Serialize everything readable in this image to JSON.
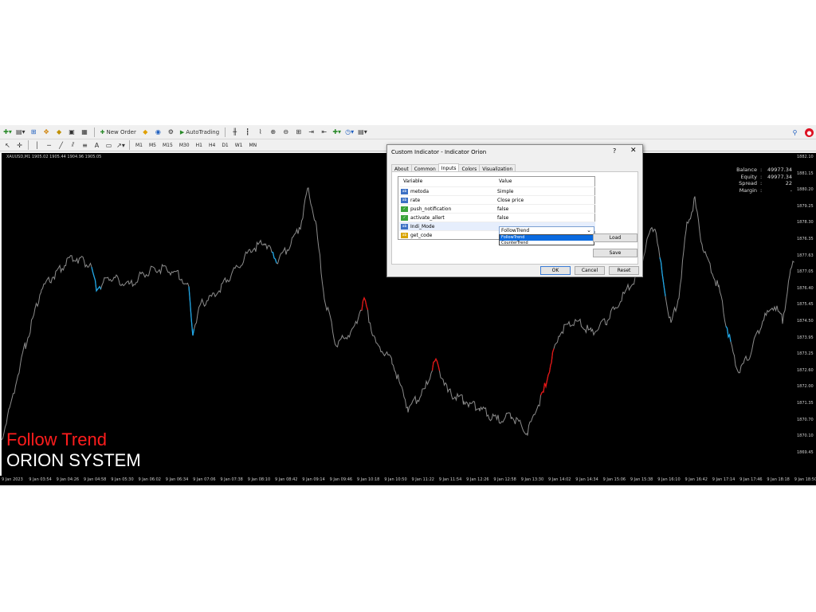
{
  "toolbar": {
    "new_order": "New Order",
    "autotrading": "AutoTrading",
    "timeframes": [
      "M1",
      "M5",
      "M15",
      "M30",
      "H1",
      "H4",
      "D1",
      "W1",
      "MN"
    ]
  },
  "chart": {
    "symbol_line": "XAUUSD,M1  1905.02 1905.44 1904.96 1905.05",
    "account": [
      {
        "label": "Balance",
        "value": "49977.34"
      },
      {
        "label": "Equity",
        "value": "49977.34"
      },
      {
        "label": "Spread",
        "value": "22"
      },
      {
        "label": "Margin",
        "value": "-"
      }
    ],
    "overlay_line1": "Follow Trend",
    "overlay_line2": "ORION SYSTEM",
    "colors": {
      "background": "#000000",
      "price": "#8c8c8c",
      "buy": "#1ea6e6",
      "sell": "#e61414"
    },
    "price_ticks": [
      "1882.10",
      "1881.15",
      "1880.20",
      "1879.25",
      "1878.30",
      "1876.35",
      "1877.63",
      "1877.05",
      "1876.40",
      "1875.45",
      "1874.50",
      "1873.95",
      "1873.25",
      "1872.60",
      "1872.00",
      "1871.35",
      "1870.70",
      "1870.10",
      "1869.45"
    ],
    "time_ticks": [
      "9 Jan 2023",
      "9 Jan 03:54",
      "9 Jan 04:26",
      "9 Jan 04:58",
      "9 Jan 05:30",
      "9 Jan 06:02",
      "9 Jan 06:34",
      "9 Jan 07:06",
      "9 Jan 07:38",
      "9 Jan 08:10",
      "9 Jan 08:42",
      "9 Jan 09:14",
      "9 Jan 09:46",
      "9 Jan 10:18",
      "9 Jan 10:50",
      "9 Jan 11:22",
      "9 Jan 11:54",
      "9 Jan 12:26",
      "9 Jan 12:58",
      "9 Jan 13:30",
      "9 Jan 14:02",
      "9 Jan 14:34",
      "9 Jan 15:06",
      "9 Jan 15:38",
      "9 Jan 16:10",
      "9 Jan 16:42",
      "9 Jan 17:14",
      "9 Jan 17:46",
      "9 Jan 18:18",
      "9 Jan 18:50"
    ]
  },
  "dialog": {
    "title": "Custom Indicator - Indicator Orion",
    "help": "?",
    "close": "✕",
    "tabs": [
      "About",
      "Common",
      "Inputs",
      "Colors",
      "Visualization"
    ],
    "active_tab": "Inputs",
    "col_variable": "Variable",
    "col_value": "Value",
    "rows": [
      {
        "icon": "ab",
        "name": "metoda",
        "value": "Simple"
      },
      {
        "icon": "ab",
        "name": "rate",
        "value": "Close price"
      },
      {
        "icon": "bool",
        "name": "push_notification",
        "value": "false"
      },
      {
        "icon": "bool",
        "name": "activate_allert",
        "value": "false"
      },
      {
        "icon": "ab",
        "name": "Indi_Mode",
        "value": "FollowTrend"
      },
      {
        "icon": "str",
        "name": "get_code",
        "value": ""
      }
    ],
    "dropdown_options": [
      "FollowTrend",
      "CounterTrend"
    ],
    "load": "Load",
    "save": "Save",
    "ok": "OK",
    "cancel": "Cancel",
    "reset": "Reset"
  }
}
